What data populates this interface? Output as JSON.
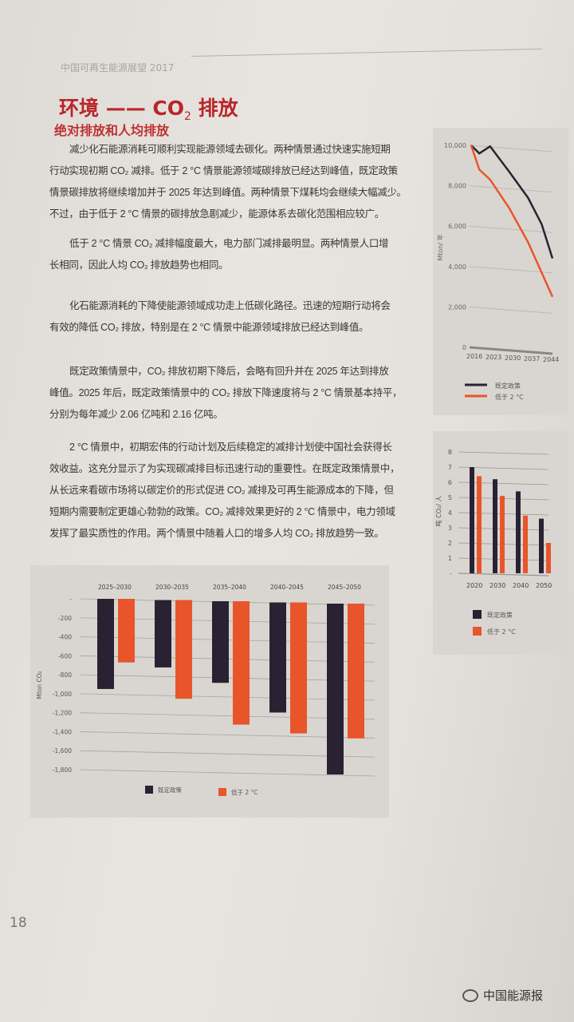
{
  "header": {
    "running_title": "中国可再生能源展望 2017"
  },
  "title": {
    "main": "环境 —— CO",
    "sub": "2",
    "tail": " 排放"
  },
  "subtitle": "绝对排放和人均排放",
  "paragraphs": [
    [
      "减少化石能源消耗可顺利实现能源领域去碳化。两种情景通过快速实施短期",
      "行动实现初期 CO₂ 减排。低于 2 °C 情景能源领域碳排放已经达到峰值，既定政策",
      "情景碳排放将继续增加并于 2025 年达到峰值。两种情景下煤耗均会继续大幅减少。",
      "不过，由于低于 2 °C 情景的碳排放急剧减少，能源体系去碳化范围相应较广。"
    ],
    [
      "低于 2 °C 情景 CO₂ 减排幅度最大，电力部门减排最明显。两种情景人口增",
      "长相同，因此人均 CO₂ 排放趋势也相同。"
    ],
    [
      "化石能源消耗的下降使能源领域成功走上低碳化路径。迅速的短期行动将会",
      "有效的降低 CO₂ 排放，特别是在 2 °C 情景中能源领域排放已经达到峰值。"
    ],
    [
      "既定政策情景中，CO₂ 排放初期下降后，会略有回升并在 2025 年达到排放",
      "峰值。2025 年后，既定政策情景中的 CO₂ 排放下降速度将与 2 °C 情景基本持平，",
      "分别为每年减少 2.06 亿吨和 2.16 亿吨。"
    ],
    [
      "2 °C 情景中，初期宏伟的行动计划及后续稳定的减排计划使中国社会获得长",
      "效收益。这充分显示了为实现碳减排目标迅速行动的重要性。在既定政策情景中，",
      "从长远来看碳市场将以碳定价的形式促进 CO₂ 减排及可再生能源成本的下降，但",
      "短期内需要制定更雄心勃勃的政策。CO₂ 减排效果更好的 2 °C 情景中，电力领域",
      "发挥了最实质性的作用。两个情景中随着人口的增多人均 CO₂ 排放趋势一致。"
    ]
  ],
  "page_number": "18",
  "watermark": "中国能源报",
  "colors": {
    "policy": "#2a2233",
    "below2c": "#e8552a",
    "title_red": "#b8262b"
  },
  "chart_data": [
    {
      "type": "line",
      "ylabel": "Mton/ 年",
      "yticks": [
        "0",
        "2,000",
        "4,000",
        "6,000",
        "8,000",
        "10,000"
      ],
      "ylim": [
        0,
        10000
      ],
      "xticks": [
        "2016",
        "2023",
        "2030",
        "2037",
        "2044"
      ],
      "series": [
        {
          "name": "既定政策",
          "x": [
            2016,
            2019,
            2023,
            2030,
            2037,
            2042,
            2046
          ],
          "y": [
            10000,
            9600,
            9950,
            8700,
            7400,
            6100,
            4400
          ]
        },
        {
          "name": "低于 2 °C",
          "x": [
            2016,
            2019,
            2023,
            2030,
            2037,
            2042,
            2046
          ],
          "y": [
            10000,
            8800,
            8300,
            6900,
            5200,
            3700,
            2500
          ]
        }
      ]
    },
    {
      "type": "bar",
      "ylabel": "吨 CO₂/ 人",
      "yticks": [
        "-",
        "1",
        "2",
        "3",
        "4",
        "5",
        "6",
        "7",
        "8"
      ],
      "ylim": [
        0,
        8
      ],
      "categories": [
        "2020",
        "2030",
        "2040",
        "2050"
      ],
      "series": [
        {
          "name": "既定政策",
          "values": [
            7.0,
            6.2,
            5.4,
            3.6
          ]
        },
        {
          "name": "低于 2 °C",
          "values": [
            6.4,
            5.1,
            3.8,
            2.0
          ]
        }
      ]
    },
    {
      "type": "bar",
      "ylabel": "Mton CO₂",
      "yticks": [
        "-",
        "-200",
        "-400",
        "-600",
        "-800",
        "-1,000",
        "-1,200",
        "-1,400",
        "-1,600",
        "-1,800"
      ],
      "ylim": [
        -1800,
        0
      ],
      "categories": [
        "2025–2030",
        "2030–2035",
        "2035–2040",
        "2040–2045",
        "2045–2050"
      ],
      "series": [
        {
          "name": "既定政策",
          "values": [
            -950,
            -710,
            -860,
            -1160,
            -1800
          ]
        },
        {
          "name": "低于 2 °C",
          "values": [
            -670,
            -1040,
            -1300,
            -1380,
            -1420
          ]
        }
      ]
    }
  ]
}
